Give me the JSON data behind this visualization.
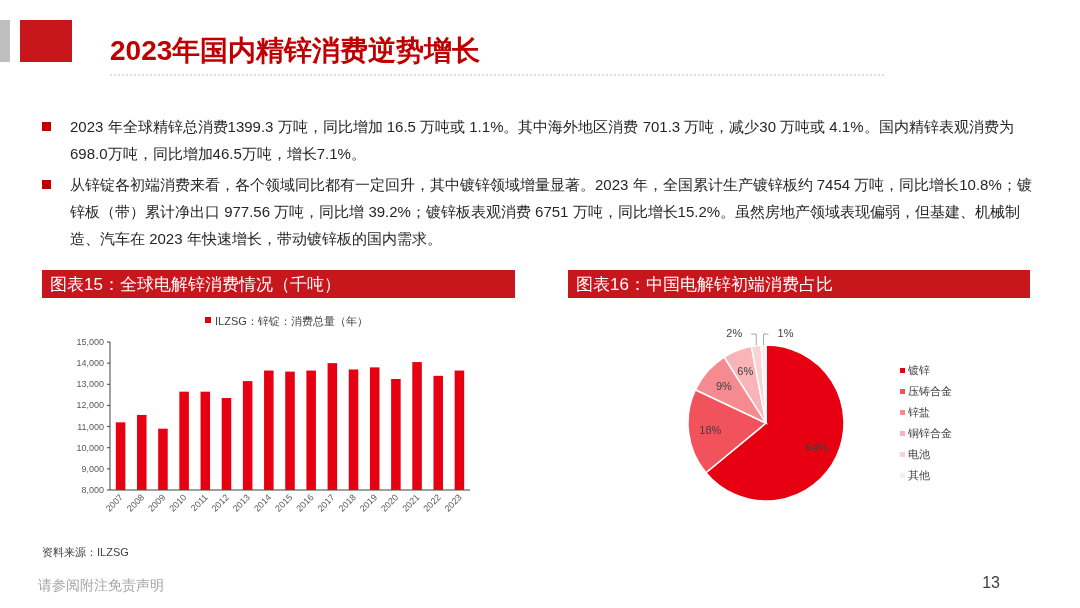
{
  "chart_data": [
    {
      "type": "other",
      "title": "2023年国内精锌消费逆势增长",
      "annotations": [
        "2023 年全球精锌总消费1399.3 万吨，同比增加 16.5 万吨或 1.1%。其中海外地区消费 701.3 万吨，减少30 万吨或 4.1%。国内精锌表观消费为698.0万吨，同比增加46.5万吨，增长7.1%。",
        "从锌锭各初端消费来看，各个领域同比都有一定回升，其中镀锌领域增量显著。2023 年，全国累计生产镀锌板约 7454 万吨，同比增长10.8%；镀锌板（带）累计净出口 977.56 万吨，同比增 39.2%；镀锌板表观消费 6751 万吨，同比增长15.2%。虽然房地产领域表现偏弱，但基建、机械制造、汽车在 2023 年快速增长，带动镀锌板的国内需求。",
        "请参阅附注免责声明",
        "13"
      ]
    },
    {
      "type": "bar",
      "title": "图表15：全球电解锌消费情况（千吨）",
      "categories": [
        "2007",
        "2008",
        "2009",
        "2010",
        "2011",
        "2012",
        "2013",
        "2014",
        "2015",
        "2016",
        "2017",
        "2018",
        "2019",
        "2020",
        "2021",
        "2022",
        "2023"
      ],
      "series": [
        {
          "name": "ILZSG：锌锭：消费总量（年）",
          "color": "#e60012",
          "values": [
            11200,
            11550,
            10900,
            12650,
            12650,
            12350,
            13150,
            13650,
            13600,
            13650,
            14000,
            13700,
            13800,
            13250,
            14050,
            13400,
            13650
          ]
        }
      ],
      "ylim": [
        8000,
        15000
      ],
      "yticks": [
        {
          "value": 8000,
          "label": "8,000"
        },
        {
          "value": 9000,
          "label": "9,000"
        },
        {
          "value": 10000,
          "label": "10,000"
        },
        {
          "value": 11000,
          "label": "11,000"
        },
        {
          "value": 12000,
          "label": "12,000"
        },
        {
          "value": 13000,
          "label": "13,000"
        },
        {
          "value": 14000,
          "label": "14,000"
        },
        {
          "value": 15000,
          "label": "15,000"
        }
      ],
      "legend": "top",
      "annotations": [
        "资料来源：ILZSG"
      ]
    },
    {
      "type": "pie",
      "title": "图表16：中国电解锌初端消费占比",
      "categories": [
        "镀锌",
        "压铸合金",
        "锌盐",
        "铜锌合金",
        "电池",
        "其他"
      ],
      "values": [
        64,
        18,
        9,
        6,
        2,
        1
      ],
      "colors": [
        "#e60012",
        "#f2525c",
        "#f58a90",
        "#f8b4b8",
        "#fbd3d5",
        "#fdecec"
      ],
      "value_labels": [
        "64%",
        "18%",
        "9%",
        "6%",
        "2%",
        "1%"
      ],
      "legend": "right"
    }
  ]
}
